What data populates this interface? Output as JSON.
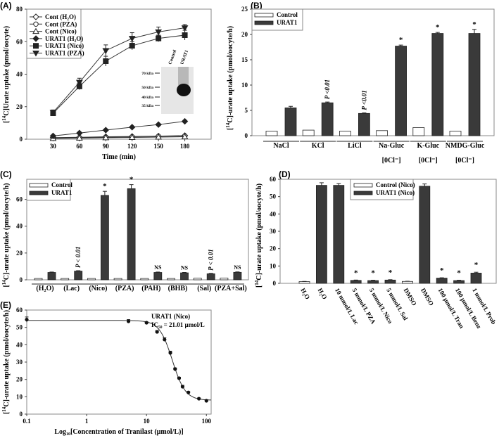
{
  "chart_data": [
    {
      "panel": "(A)",
      "type": "line",
      "xlabel": "Time (min)",
      "ylabel": {
        "pre": "[",
        "sup": "14",
        "post": "C]Urate uptake (pmol/oocyte)"
      },
      "xlim": [
        0,
        210
      ],
      "ylim": [
        0,
        80
      ],
      "xticks": [
        30,
        60,
        90,
        120,
        150,
        180
      ],
      "yticks": [
        0,
        20,
        40,
        60,
        80
      ],
      "x": [
        30,
        60,
        90,
        120,
        150,
        180
      ],
      "legend_position": "top-left",
      "series": [
        {
          "name": "Cont (H₂O)",
          "marker": "diamond-open",
          "values": [
            1.0,
            1.2,
            1.5,
            1.7,
            1.9,
            2.2
          ],
          "err": [
            0.2,
            0.2,
            0.2,
            0.2,
            0.2,
            0.3
          ]
        },
        {
          "name": "Cont (PZA)",
          "marker": "circle-open",
          "values": [
            0.8,
            1.0,
            1.2,
            1.5,
            1.8,
            2.0
          ],
          "err": [
            0.2,
            0.2,
            0.2,
            0.2,
            0.2,
            0.2
          ]
        },
        {
          "name": "Cont (Nico)",
          "marker": "triangle-open",
          "values": [
            0.5,
            0.7,
            0.9,
            1.1,
            1.3,
            1.5
          ],
          "err": [
            0.1,
            0.1,
            0.1,
            0.1,
            0.1,
            0.1
          ]
        },
        {
          "name": "URAT1 (H₂O)",
          "marker": "diamond-filled",
          "values": [
            2.0,
            3.8,
            5.6,
            7.4,
            9.0,
            11.0
          ],
          "err": [
            0.3,
            0.3,
            0.4,
            0.4,
            0.5,
            0.6
          ]
        },
        {
          "name": "URAT1 (Nico)",
          "marker": "square-filled",
          "values": [
            16.0,
            32.5,
            48.0,
            57.5,
            62.0,
            64.0
          ],
          "err": [
            1.5,
            2.0,
            3.0,
            2.5,
            2.0,
            3.0
          ]
        },
        {
          "name": "URAT1 (PZA)",
          "marker": "triangle-down-filled",
          "values": [
            16.5,
            35.0,
            54.5,
            62.0,
            66.0,
            68.5
          ],
          "err": [
            1.5,
            2.5,
            3.5,
            3.5,
            3.0,
            2.0
          ]
        }
      ],
      "inset": {
        "lanes": [
          "Control",
          "URAT1"
        ],
        "markers": [
          "70 kDa",
          "50 kDa",
          "40 kDa",
          "35 kDa"
        ]
      }
    },
    {
      "panel": "(B)",
      "type": "bar",
      "ylabel": {
        "pre": "[",
        "sup": "14",
        "post": "C]-urate uptake (pmol/oocyte/h)"
      },
      "ylim": [
        0,
        25
      ],
      "yticks": [
        0,
        5,
        10,
        15,
        20,
        25
      ],
      "categories": [
        "NaCl",
        "KCl",
        "LiCl",
        "Na-Gluc",
        "K-Gluc",
        "NMDG-Gluc"
      ],
      "sublabels": [
        "",
        "",
        "",
        "[0Cl⁻]",
        "[0Cl⁻]",
        "[0Cl⁻]"
      ],
      "legend_position": "top-left",
      "series": [
        {
          "name": "Control",
          "color": "#ffffff",
          "values": [
            0.9,
            1.1,
            0.9,
            1.0,
            1.6,
            0.9
          ],
          "err": [
            0.05,
            0.05,
            0.05,
            0.05,
            0.1,
            0.05
          ]
        },
        {
          "name": "URAT1",
          "color": "#3a3a3a",
          "values": [
            5.5,
            6.5,
            4.4,
            17.7,
            20.2,
            20.2
          ],
          "err": [
            0.3,
            0.15,
            0.1,
            0.2,
            0.2,
            0.8
          ]
        }
      ],
      "annotations": [
        "",
        "P <0.01",
        "P <0.01",
        "*",
        "*",
        "*"
      ]
    },
    {
      "panel": "(C)",
      "type": "bar",
      "ylabel": {
        "pre": "[",
        "sup": "14",
        "post": "C]-urate uptake (pmol/oocyte/h)"
      },
      "ylim": [
        0,
        75
      ],
      "yticks": [
        0,
        20,
        40,
        60
      ],
      "categories": [
        "(H₂O)",
        "(Lac)",
        "(Nico)",
        "(PZA)",
        "(PAH)",
        "(BHB)",
        "(Sal)",
        "(PZA+Sal)"
      ],
      "legend_position": "top-left",
      "series": [
        {
          "name": "Control",
          "color": "#ffffff",
          "values": [
            1.0,
            1.0,
            1.0,
            1.0,
            1.0,
            1.0,
            1.2,
            1.3
          ],
          "err": [
            0.1,
            0.1,
            0.1,
            0.1,
            0.1,
            0.1,
            0.1,
            0.1
          ]
        },
        {
          "name": "URAT1",
          "color": "#3a3a3a",
          "values": [
            5.5,
            6.5,
            63.0,
            68.0,
            5.5,
            5.2,
            4.5,
            5.6
          ],
          "err": [
            0.3,
            0.3,
            3.0,
            3.0,
            0.3,
            0.3,
            0.3,
            0.3
          ]
        }
      ],
      "annotations": [
        "",
        "P < 0.01",
        "*",
        "*",
        "NS",
        "NS",
        "P < 0.01",
        "NS"
      ]
    },
    {
      "panel": "(D)",
      "type": "bar",
      "ylabel": {
        "pre": "[",
        "sup": "14",
        "post": "C]-urate uptake (pmol/oocyte/h)"
      },
      "ylim": [
        0,
        60
      ],
      "yticks": [
        0,
        10,
        20,
        30,
        40,
        50,
        60
      ],
      "legend_position": "top-center",
      "legend": [
        {
          "name": "Control (Nico)",
          "color": "#ffffff"
        },
        {
          "name": "URAT1 (Nico)",
          "color": "#3a3a3a"
        }
      ],
      "bars": [
        {
          "label": "H₂O",
          "group": "Control (Nico)",
          "value": 1.0,
          "err": 0.1,
          "annotation": ""
        },
        {
          "label": "H₂O",
          "group": "URAT1 (Nico)",
          "value": 56.5,
          "err": 1.5,
          "annotation": ""
        },
        {
          "label": "10 mmol/L Lac",
          "group": "URAT1 (Nico)",
          "value": 56.5,
          "err": 1.0,
          "annotation": ""
        },
        {
          "label": "5 mmol/L PZA",
          "group": "URAT1 (Nico)",
          "value": 1.7,
          "err": 0.2,
          "annotation": "*"
        },
        {
          "label": "5 mmol/L Nico",
          "group": "URAT1 (Nico)",
          "value": 1.6,
          "err": 0.2,
          "annotation": "*"
        },
        {
          "label": "5 mmol/L Sal",
          "group": "URAT1 (Nico)",
          "value": 1.9,
          "err": 0.2,
          "annotation": "*"
        },
        {
          "label": "DMSO",
          "group": "Control (Nico)",
          "value": 1.1,
          "err": 0.1,
          "annotation": ""
        },
        {
          "label": "DMSO",
          "group": "URAT1 (Nico)",
          "value": 56.0,
          "err": 1.3,
          "annotation": ""
        },
        {
          "label": "100 µmol/L Tran",
          "group": "URAT1 (Nico)",
          "value": 3.0,
          "err": 0.2,
          "annotation": "*"
        },
        {
          "label": "100 µmol/L Benz",
          "group": "URAT1 (Nico)",
          "value": 1.6,
          "err": 0.2,
          "annotation": "*"
        },
        {
          "label": "1 mmol/L Prob",
          "group": "URAT1 (Nico)",
          "value": 5.9,
          "err": 0.5,
          "annotation": "*"
        }
      ]
    },
    {
      "panel": "(E)",
      "type": "scatter",
      "xscale": "log",
      "xlabel": "Log₁₀[Concentration of Tranilast (µmol/L)]",
      "ylabel": {
        "pre": "[",
        "sup": "14",
        "post": "C]-urate uptake (pmol/oocyte/h)"
      },
      "xlim": [
        0.1,
        120
      ],
      "ylim": [
        0,
        60
      ],
      "xticks": [
        0.1,
        1,
        10,
        100
      ],
      "xticklabels": [
        "0.1",
        "1",
        "10",
        "100"
      ],
      "yticks": [
        0,
        10,
        20,
        30,
        40,
        50,
        60
      ],
      "x": [
        0.1,
        5,
        10,
        15,
        20,
        25,
        30,
        35,
        40,
        50,
        75,
        100
      ],
      "y": [
        54.5,
        53.5,
        52.7,
        47.4,
        43.0,
        35.3,
        26.0,
        20.7,
        15.8,
        12.5,
        8.9,
        7.7
      ],
      "err": [
        1.5,
        1.0,
        0.5,
        0.8,
        1.0,
        1.0,
        0.6,
        0.6,
        0.8,
        0.5,
        0.4,
        0.4
      ],
      "annotation": [
        "URAT1 (Nico)",
        "IC₅₀ = 21.01 µmol/L"
      ],
      "fit_curve": true
    }
  ]
}
